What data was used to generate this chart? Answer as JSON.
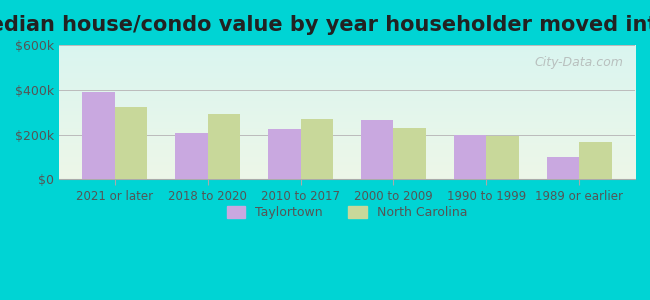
{
  "title": "Median house/condo value by year householder moved into unit",
  "categories": [
    "2021 or later",
    "2018 to 2020",
    "2010 to 2017",
    "2000 to 2009",
    "1990 to 1999",
    "1989 or earlier"
  ],
  "taylortown_values": [
    390000,
    205000,
    225000,
    265000,
    200000,
    100000
  ],
  "nc_values": [
    325000,
    290000,
    270000,
    230000,
    195000,
    165000
  ],
  "taylortown_color": "#c9a8e0",
  "nc_color": "#c8d89a",
  "ylim": [
    0,
    600000
  ],
  "yticks": [
    0,
    200000,
    400000,
    600000
  ],
  "ytick_labels": [
    "$0",
    "$200k",
    "$400k",
    "$600k"
  ],
  "background_color_top": "#e0f7f7",
  "background_color_bottom": "#e8f5e0",
  "outer_bg": "#00d4d4",
  "legend_labels": [
    "Taylortown",
    "North Carolina"
  ],
  "watermark": "City-Data.com",
  "title_fontsize": 15,
  "bar_width": 0.35
}
